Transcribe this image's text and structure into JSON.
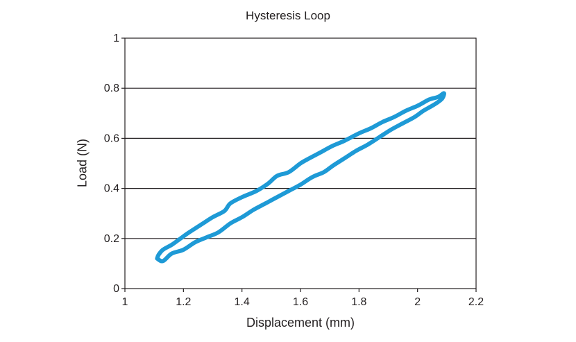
{
  "chart_data": {
    "type": "line",
    "title": "Hysteresis Loop",
    "xlabel": "Displacement (mm)",
    "ylabel": "Load (N)",
    "xlim": [
      1,
      2.2
    ],
    "ylim": [
      0,
      1
    ],
    "x_ticks": [
      "1",
      "1.2",
      "1.4",
      "1.6",
      "1.8",
      "2",
      "2.2"
    ],
    "y_ticks": [
      "0",
      "0.2",
      "0.4",
      "0.6",
      "0.8",
      "1"
    ],
    "grid": "horizontal",
    "legend": "none",
    "color": "#1e9ad6",
    "series": [
      {
        "x": [
          1.11,
          1.115,
          1.13,
          1.16,
          1.19,
          1.22,
          1.26,
          1.3,
          1.34,
          1.36,
          1.4,
          1.45,
          1.49,
          1.52,
          1.56,
          1.6,
          1.63,
          1.67,
          1.71,
          1.75,
          1.8,
          1.84,
          1.88,
          1.92,
          1.96,
          2.0,
          2.04,
          2.07,
          2.09,
          2.085,
          2.07,
          2.05,
          2.02,
          1.99,
          1.95,
          1.91,
          1.87,
          1.83,
          1.79,
          1.75,
          1.71,
          1.68,
          1.64,
          1.6,
          1.56,
          1.52,
          1.48,
          1.44,
          1.4,
          1.36,
          1.32,
          1.28,
          1.24,
          1.2,
          1.16,
          1.13,
          1.11
        ],
        "y": [
          0.12,
          0.135,
          0.155,
          0.175,
          0.2,
          0.225,
          0.255,
          0.285,
          0.31,
          0.34,
          0.365,
          0.39,
          0.42,
          0.45,
          0.465,
          0.5,
          0.52,
          0.545,
          0.57,
          0.59,
          0.62,
          0.64,
          0.665,
          0.685,
          0.71,
          0.73,
          0.755,
          0.765,
          0.78,
          0.76,
          0.745,
          0.73,
          0.71,
          0.685,
          0.66,
          0.635,
          0.605,
          0.575,
          0.55,
          0.52,
          0.49,
          0.465,
          0.445,
          0.415,
          0.39,
          0.365,
          0.34,
          0.315,
          0.285,
          0.26,
          0.225,
          0.205,
          0.185,
          0.155,
          0.14,
          0.11,
          0.12
        ]
      }
    ]
  }
}
